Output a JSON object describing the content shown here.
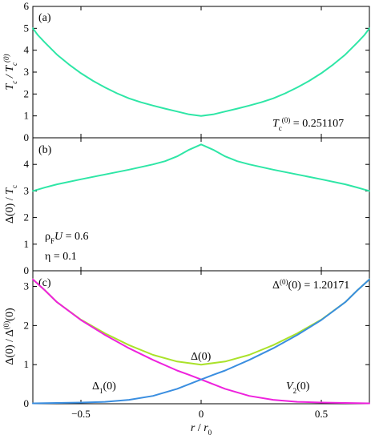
{
  "chart_data": [
    {
      "type": "line",
      "panel_label": "(a)",
      "ylabel": "T_c / T_c^(0)",
      "annotation": "T_c^(0) = 0.251107",
      "xlim": [
        -0.7,
        0.7
      ],
      "ylim": [
        0,
        6
      ],
      "yticks": [
        "0",
        "1",
        "2",
        "3",
        "4",
        "5",
        "6"
      ],
      "series": [
        {
          "color": "#2ee6a6",
          "x": [
            -0.7,
            -0.68,
            -0.65,
            -0.6,
            -0.55,
            -0.5,
            -0.45,
            -0.4,
            -0.35,
            -0.3,
            -0.25,
            -0.2,
            -0.15,
            -0.1,
            -0.05,
            0,
            0.05,
            0.1,
            0.15,
            0.2,
            0.25,
            0.3,
            0.35,
            0.4,
            0.45,
            0.5,
            0.55,
            0.6,
            0.65,
            0.68,
            0.7
          ],
          "y": [
            5.0,
            4.7,
            4.35,
            3.8,
            3.35,
            2.95,
            2.6,
            2.3,
            2.03,
            1.8,
            1.62,
            1.47,
            1.33,
            1.2,
            1.07,
            1.0,
            1.07,
            1.2,
            1.33,
            1.47,
            1.62,
            1.8,
            2.03,
            2.3,
            2.6,
            2.95,
            3.35,
            3.8,
            4.35,
            4.7,
            5.0
          ]
        }
      ]
    },
    {
      "type": "line",
      "panel_label": "(b)",
      "ylabel": "Δ(0) / T_c",
      "annotations": [
        "ρ_F U = 0.6",
        "η = 0.1"
      ],
      "xlim": [
        -0.7,
        0.7
      ],
      "ylim": [
        0,
        5
      ],
      "yticks": [
        "0",
        "1",
        "2",
        "3",
        "4"
      ],
      "series": [
        {
          "color": "#2ee6a6",
          "x": [
            -0.7,
            -0.65,
            -0.6,
            -0.5,
            -0.4,
            -0.3,
            -0.2,
            -0.15,
            -0.1,
            -0.05,
            0,
            0.05,
            0.1,
            0.15,
            0.2,
            0.3,
            0.4,
            0.5,
            0.6,
            0.65,
            0.7
          ],
          "y": [
            3.0,
            3.13,
            3.25,
            3.44,
            3.62,
            3.8,
            4.0,
            4.12,
            4.3,
            4.55,
            4.75,
            4.55,
            4.3,
            4.12,
            4.0,
            3.8,
            3.62,
            3.44,
            3.25,
            3.13,
            3.0
          ]
        }
      ]
    },
    {
      "type": "line",
      "panel_label": "(c)",
      "ylabel": "Δ(0) / Δ^(0)(0)",
      "xlabel": "r / r_0",
      "annotation": "Δ^(0)(0) = 1.20171",
      "xlim": [
        -0.7,
        0.7
      ],
      "ylim": [
        0,
        3.4
      ],
      "yticks": [
        "0",
        "1",
        "2",
        "3"
      ],
      "xticks": [
        "-0.5",
        "0",
        "0.5"
      ],
      "xtick_values": [
        -0.5,
        0,
        0.5
      ],
      "series_labels": [
        "Δ(0)",
        "Δ_1(0)",
        "V_2(0)"
      ],
      "series": [
        {
          "label": "Δ(0)",
          "color": "#aae22a",
          "x": [
            -0.7,
            -0.65,
            -0.6,
            -0.5,
            -0.4,
            -0.3,
            -0.2,
            -0.1,
            0,
            0.1,
            0.2,
            0.3,
            0.4,
            0.5,
            0.6,
            0.65,
            0.7
          ],
          "y": [
            3.18,
            2.9,
            2.6,
            2.15,
            1.8,
            1.5,
            1.25,
            1.08,
            1.0,
            1.08,
            1.25,
            1.5,
            1.8,
            2.15,
            2.6,
            2.9,
            3.18
          ]
        },
        {
          "label": "Δ_1(0)",
          "color": "#ee22dd",
          "x": [
            -0.7,
            -0.65,
            -0.6,
            -0.5,
            -0.4,
            -0.3,
            -0.2,
            -0.1,
            -0.05,
            0,
            0.05,
            0.1,
            0.2,
            0.3,
            0.4,
            0.5,
            0.6,
            0.7
          ],
          "y": [
            3.18,
            2.9,
            2.6,
            2.14,
            1.76,
            1.42,
            1.12,
            0.85,
            0.74,
            0.62,
            0.5,
            0.38,
            0.2,
            0.1,
            0.05,
            0.03,
            0.02,
            0.01
          ]
        },
        {
          "label": "V_2(0)",
          "color": "#3a8ee0",
          "x": [
            -0.7,
            -0.6,
            -0.5,
            -0.4,
            -0.3,
            -0.2,
            -0.1,
            -0.05,
            0,
            0.05,
            0.1,
            0.2,
            0.3,
            0.4,
            0.5,
            0.6,
            0.65,
            0.7
          ],
          "y": [
            0.01,
            0.02,
            0.03,
            0.05,
            0.1,
            0.2,
            0.38,
            0.5,
            0.62,
            0.74,
            0.85,
            1.12,
            1.42,
            1.76,
            2.14,
            2.6,
            2.9,
            3.18
          ]
        }
      ]
    }
  ]
}
